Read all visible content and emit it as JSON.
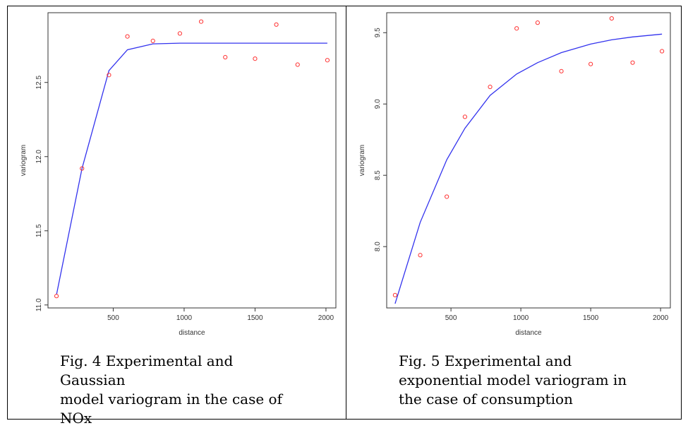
{
  "chart_data": [
    {
      "type": "scatter",
      "xlabel": "distance",
      "ylabel": "variogram",
      "x_ticks": [
        500,
        1000,
        1500,
        2000
      ],
      "y_ticks": [
        11.0,
        11.5,
        12.0,
        12.5
      ],
      "xlim": [
        40,
        2070
      ],
      "ylim": [
        10.98,
        12.97
      ],
      "points_color": "#ff3333",
      "model_color": "#3333ee",
      "series": [
        {
          "kind": "points",
          "x": [
            100,
            280,
            470,
            600,
            780,
            970,
            1120,
            1290,
            1500,
            1650,
            1800,
            2010
          ],
          "y": [
            11.06,
            11.92,
            12.55,
            12.81,
            12.78,
            12.83,
            12.91,
            12.67,
            12.66,
            12.89,
            12.62,
            12.65
          ]
        },
        {
          "kind": "model",
          "x": [
            100,
            280,
            470,
            600,
            780,
            970,
            1120,
            1290,
            1500,
            1650,
            1800,
            2010
          ],
          "y": [
            11.07,
            11.92,
            12.58,
            12.72,
            12.76,
            12.765,
            12.765,
            12.765,
            12.765,
            12.765,
            12.765,
            12.765
          ]
        }
      ]
    },
    {
      "type": "scatter",
      "xlabel": "distance",
      "ylabel": "variogram",
      "x_ticks": [
        500,
        1000,
        1500,
        2000
      ],
      "y_ticks": [
        8.0,
        8.5,
        9.0,
        9.5
      ],
      "xlim": [
        40,
        2070
      ],
      "ylim": [
        7.57,
        9.64
      ],
      "points_color": "#ff3333",
      "model_color": "#3333ee",
      "series": [
        {
          "kind": "points",
          "x": [
            100,
            280,
            470,
            600,
            780,
            970,
            1120,
            1290,
            1500,
            1650,
            1800,
            2010
          ],
          "y": [
            7.66,
            7.94,
            8.35,
            8.91,
            9.12,
            9.53,
            9.57,
            9.23,
            9.28,
            9.6,
            9.29,
            9.37
          ]
        },
        {
          "kind": "model",
          "x": [
            100,
            280,
            470,
            600,
            780,
            970,
            1120,
            1290,
            1500,
            1650,
            1800,
            2010
          ],
          "y": [
            7.6,
            8.17,
            8.61,
            8.83,
            9.06,
            9.21,
            9.29,
            9.36,
            9.42,
            9.45,
            9.47,
            9.49
          ]
        }
      ]
    }
  ],
  "captions": {
    "fig4": [
      "Fig. 4 Experimental and Gaussian",
      "model variogram in the case of",
      "NOx"
    ],
    "fig5": [
      "Fig. 5 Experimental and",
      "exponential model variogram in",
      "the case of consumption"
    ]
  }
}
